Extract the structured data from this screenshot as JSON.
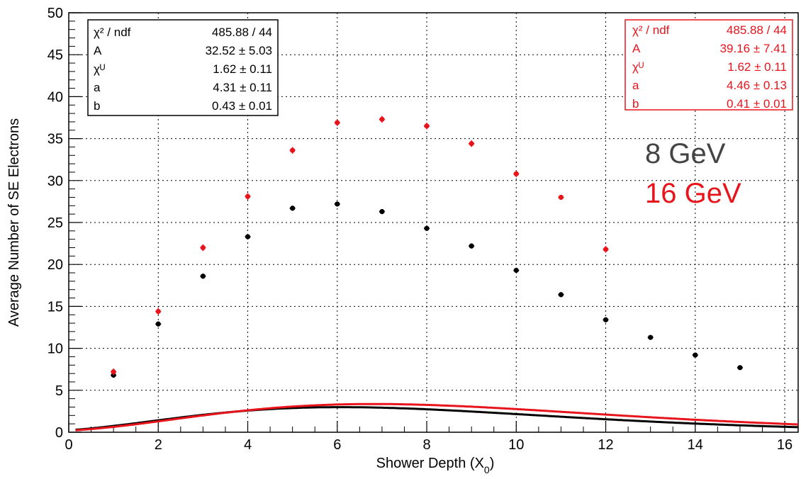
{
  "chart_data": {
    "type": "scatter",
    "xlabel": "Shower Depth (X",
    "xlabel_sub": "0",
    "xlabel_close": ")",
    "ylabel": "Average Number of SE Electrons",
    "xlim": [
      0,
      16.3
    ],
    "ylim": [
      0,
      50
    ],
    "x_ticks": [
      0,
      2,
      4,
      6,
      8,
      10,
      12,
      14,
      16
    ],
    "y_ticks": [
      0,
      5,
      10,
      15,
      20,
      25,
      30,
      35,
      40,
      45,
      50
    ],
    "grid": true,
    "series": [
      {
        "name": "8 GeV",
        "color": "#000000",
        "x": [
          1,
          2,
          3,
          4,
          5,
          6,
          7,
          8,
          9,
          10,
          11,
          12,
          13,
          14,
          15
        ],
        "y": [
          6.8,
          12.9,
          18.6,
          23.3,
          26.7,
          27.2,
          26.3,
          24.3,
          22.2,
          19.3,
          16.4,
          13.4,
          11.3,
          9.2,
          7.7
        ],
        "yerr": [
          0.3,
          0.3,
          0.3,
          0.3,
          0.3,
          0.3,
          0.3,
          0.3,
          0.3,
          0.3,
          0.3,
          0.3,
          0.2,
          0.2,
          0.2
        ],
        "fit": {
          "A": 32.52,
          "chi": 1.62,
          "a": 4.31,
          "b": 0.43
        }
      },
      {
        "name": "16 GeV",
        "color": "#e8141c",
        "x": [
          1,
          2,
          3,
          4,
          5,
          6,
          7,
          8,
          9,
          10,
          11,
          12
        ],
        "y": [
          7.2,
          14.4,
          22.0,
          28.1,
          33.6,
          36.9,
          37.3,
          36.5,
          34.4,
          30.8,
          28.0,
          21.8
        ],
        "yerr": [
          0.4,
          0.4,
          0.4,
          0.4,
          0.4,
          0.4,
          0.4,
          0.4,
          0.4,
          0.4,
          0.3,
          0.4
        ],
        "fit": {
          "A": 39.16,
          "chi": 1.62,
          "a": 4.46,
          "b": 0.41
        }
      }
    ]
  },
  "stats_black": {
    "rows": [
      {
        "label": "χ² / ndf",
        "value": "485.88 / 44"
      },
      {
        "label": "A",
        "value": "32.52 ±  5.03"
      },
      {
        "label": "χᵁ",
        "value": "1.62 ±  0.11"
      },
      {
        "label": "a",
        "value": "4.31 ±  0.11"
      },
      {
        "label": "b",
        "value": "0.43 ±  0.01"
      }
    ]
  },
  "stats_red": {
    "rows": [
      {
        "label": "χ² / ndf",
        "value": "485.88 / 44"
      },
      {
        "label": "A",
        "value": "39.16 ±  7.41"
      },
      {
        "label": "χᵁ",
        "value": "1.62 ±  0.11"
      },
      {
        "label": "a",
        "value": "4.46 ±  0.13"
      },
      {
        "label": "b",
        "value": "0.41 ±  0.01"
      }
    ]
  },
  "legend": {
    "label_8": "8 GeV",
    "label_16": "16 GeV",
    "color_8": "#444444",
    "color_16": "#e8141c"
  }
}
